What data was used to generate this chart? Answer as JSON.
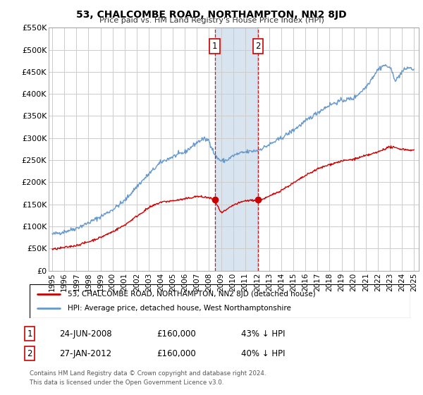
{
  "title": "53, CHALCOMBE ROAD, NORTHAMPTON, NN2 8JD",
  "subtitle": "Price paid vs. HM Land Registry's House Price Index (HPI)",
  "legend_line1": "53, CHALCOMBE ROAD, NORTHAMPTON, NN2 8JD (detached house)",
  "legend_line2": "HPI: Average price, detached house, West Northamptonshire",
  "footer1": "Contains HM Land Registry data © Crown copyright and database right 2024.",
  "footer2": "This data is licensed under the Open Government Licence v3.0.",
  "point1_date": "24-JUN-2008",
  "point1_price": "£160,000",
  "point1_hpi": "43% ↓ HPI",
  "point2_date": "27-JAN-2012",
  "point2_price": "£160,000",
  "point2_hpi": "40% ↓ HPI",
  "ylim": [
    0,
    550000
  ],
  "yticks": [
    0,
    50000,
    100000,
    150000,
    200000,
    250000,
    300000,
    350000,
    400000,
    450000,
    500000,
    550000
  ],
  "ytick_labels": [
    "£0",
    "£50K",
    "£100K",
    "£150K",
    "£200K",
    "£250K",
    "£300K",
    "£350K",
    "£400K",
    "£450K",
    "£500K",
    "£550K"
  ],
  "red_color": "#cc0000",
  "blue_color": "#6699cc",
  "point1_x": 2008.48,
  "point2_x": 2012.07,
  "bg_shade_color": "#d8e4f0",
  "grid_color": "#cccccc",
  "xlim_left": 1994.7,
  "xlim_right": 2025.4
}
